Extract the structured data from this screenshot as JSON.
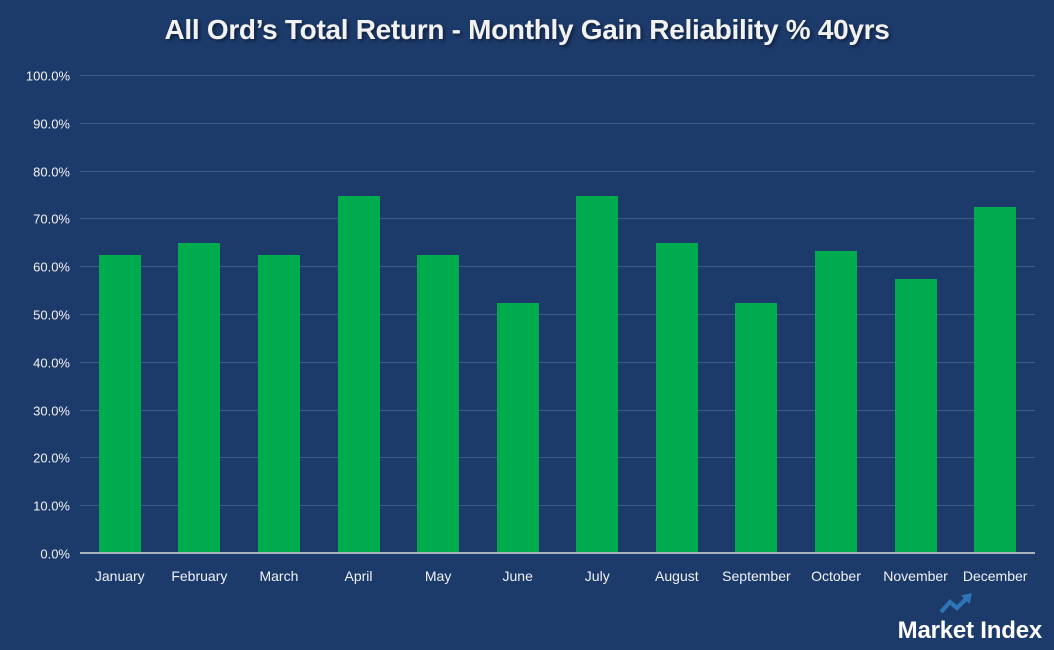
{
  "title": "All Ord’s Total Return - Monthly Gain Reliability % 40yrs",
  "colors": {
    "background": "#1d3b6a",
    "bar": "#00ab4e",
    "gridline": "#3d5a88",
    "axis_line": "#a8b2bf",
    "text": "#f2f2f2",
    "logo_arrow": "#2e75b6",
    "logo_text": "#ffffff"
  },
  "chart_data": {
    "type": "bar",
    "title": "All Ord’s Total Return - Monthly Gain Reliability % 40yrs",
    "categories": [
      "January",
      "February",
      "March",
      "April",
      "May",
      "June",
      "July",
      "August",
      "September",
      "October",
      "November",
      "December"
    ],
    "values": [
      62.5,
      65.0,
      62.5,
      75.0,
      62.5,
      52.5,
      75.0,
      65.0,
      52.5,
      63.4,
      57.5,
      72.5
    ],
    "xlabel": "",
    "ylabel": "",
    "ylim": [
      0,
      100
    ],
    "ytick_step": 10,
    "grid": true,
    "legend": false,
    "bar_color": "#00ab4e",
    "y_ticks": [
      {
        "value": 0,
        "label": "0.0%"
      },
      {
        "value": 10,
        "label": "10.0%"
      },
      {
        "value": 20,
        "label": "20.0%"
      },
      {
        "value": 30,
        "label": "30.0%"
      },
      {
        "value": 40,
        "label": "40.0%"
      },
      {
        "value": 50,
        "label": "50.0%"
      },
      {
        "value": 60,
        "label": "60.0%"
      },
      {
        "value": 70,
        "label": "70.0%"
      },
      {
        "value": 80,
        "label": "80.0%"
      },
      {
        "value": 90,
        "label": "90.0%"
      },
      {
        "value": 100,
        "label": "100.0%"
      }
    ]
  },
  "logo": {
    "text": "Market Index",
    "icon": "trend-up-arrow-icon"
  }
}
